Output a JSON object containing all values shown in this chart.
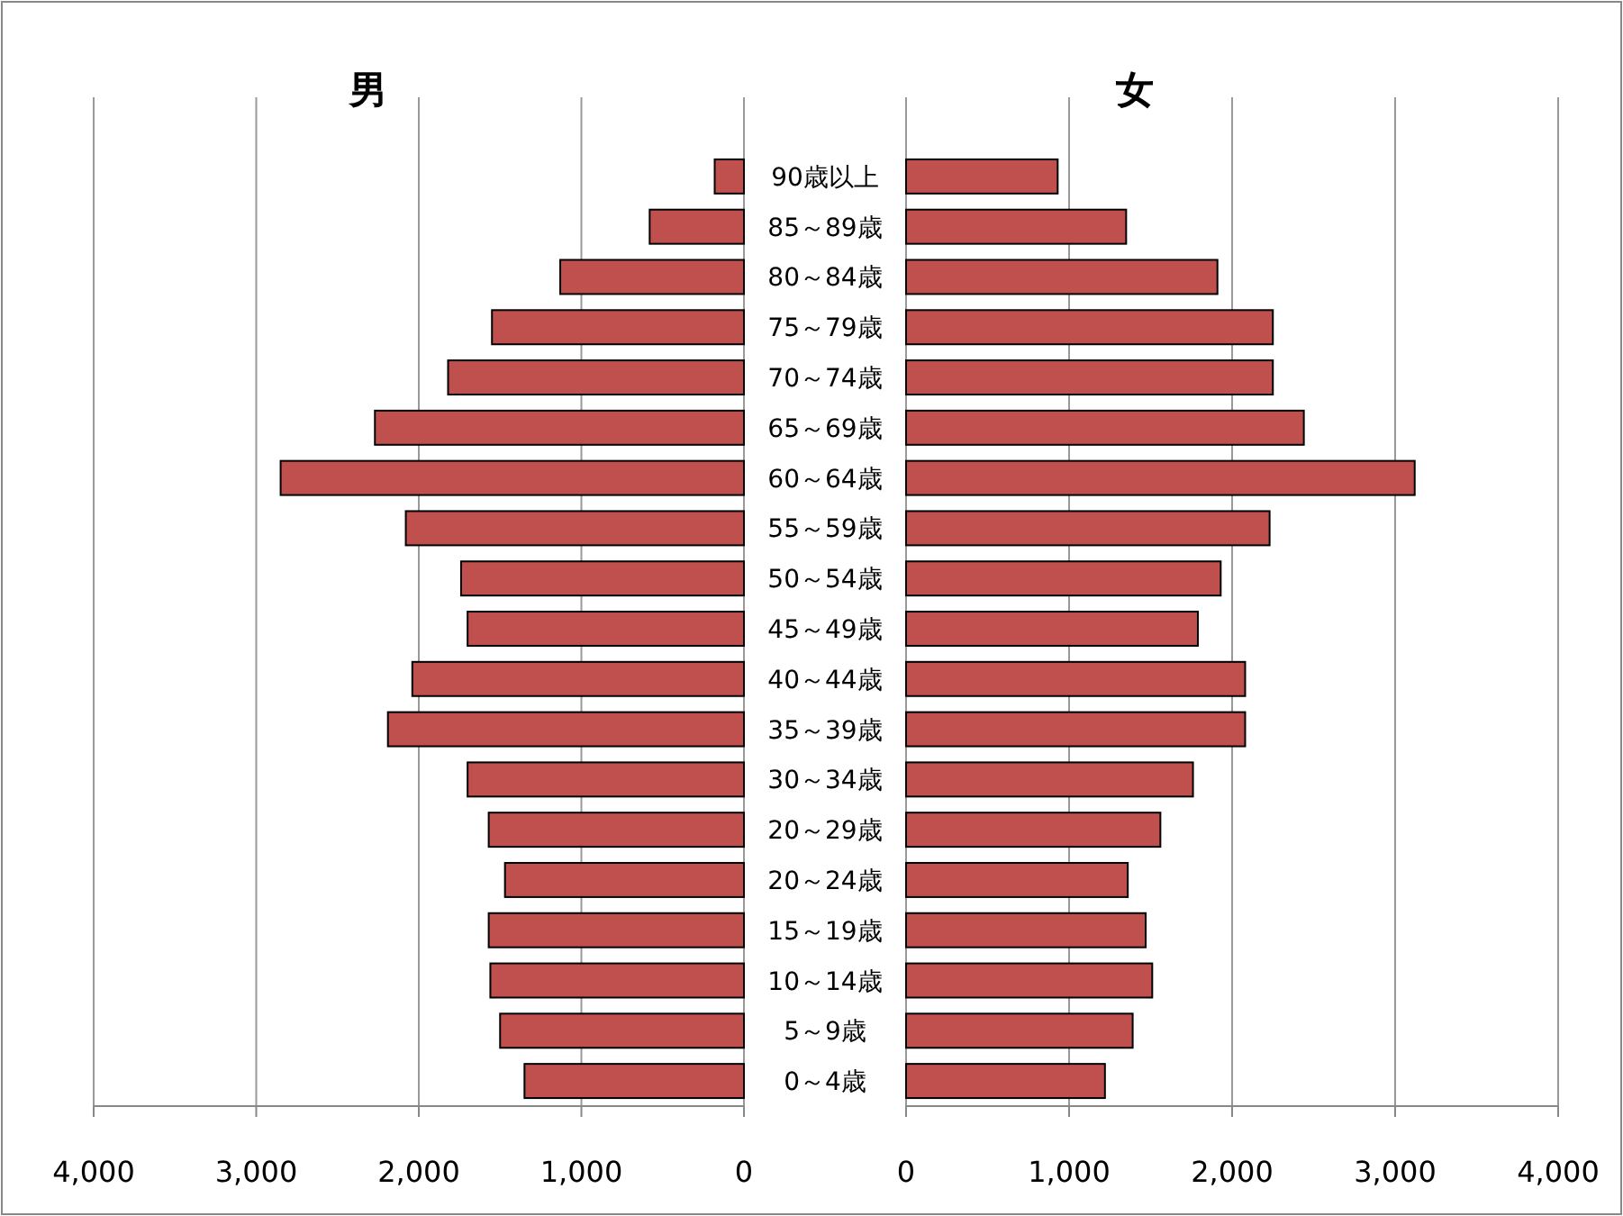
{
  "chart_data": [
    {
      "type": "bar",
      "orientation": "horizontal",
      "title": "男",
      "categories": [
        "90歳以上",
        "85～89歳",
        "80～84歳",
        "75～79歳",
        "70～74歳",
        "65～69歳",
        "60～64歳",
        "55～59歳",
        "50～54歳",
        "45～49歳",
        "40～44歳",
        "35～39歳",
        "30～34歳",
        "20～29歳",
        "20～24歳",
        "15～19歳",
        "10～14歳",
        "5～9歳",
        "0～4歳"
      ],
      "values": [
        180,
        580,
        1130,
        1550,
        1820,
        2270,
        2850,
        2080,
        1740,
        1700,
        2040,
        2190,
        1700,
        1570,
        1470,
        1570,
        1560,
        1500,
        1350
      ],
      "color": "#c0504d",
      "xlim": [
        4000,
        0
      ],
      "xticks": [
        {
          "value": 4000,
          "label": "4,000"
        },
        {
          "value": 3000,
          "label": "3,000"
        },
        {
          "value": 2000,
          "label": "2,000"
        },
        {
          "value": 1000,
          "label": "1,000"
        },
        0
      ],
      "grid": "x"
    },
    {
      "type": "bar",
      "orientation": "horizontal",
      "title": "女",
      "categories": [
        null,
        null,
        null,
        null,
        null,
        null,
        null,
        null,
        null,
        null,
        null,
        null,
        null,
        null,
        null,
        null,
        null,
        null,
        null
      ],
      "values": [
        930,
        1350,
        1910,
        2250,
        2250,
        2440,
        3120,
        2230,
        1930,
        1790,
        2080,
        2080,
        1760,
        1560,
        1360,
        1470,
        1510,
        1390,
        1220
      ],
      "color": "#c0504d",
      "xlim": [
        0,
        4000
      ],
      "xticks": [
        0,
        {
          "value": 1000,
          "label": "1,000"
        },
        {
          "value": 2000,
          "label": "2,000"
        },
        {
          "value": 3000,
          "label": "3,000"
        },
        {
          "value": 4000,
          "label": "4,000"
        }
      ],
      "grid": "x",
      "tick_labels": "x"
    }
  ]
}
